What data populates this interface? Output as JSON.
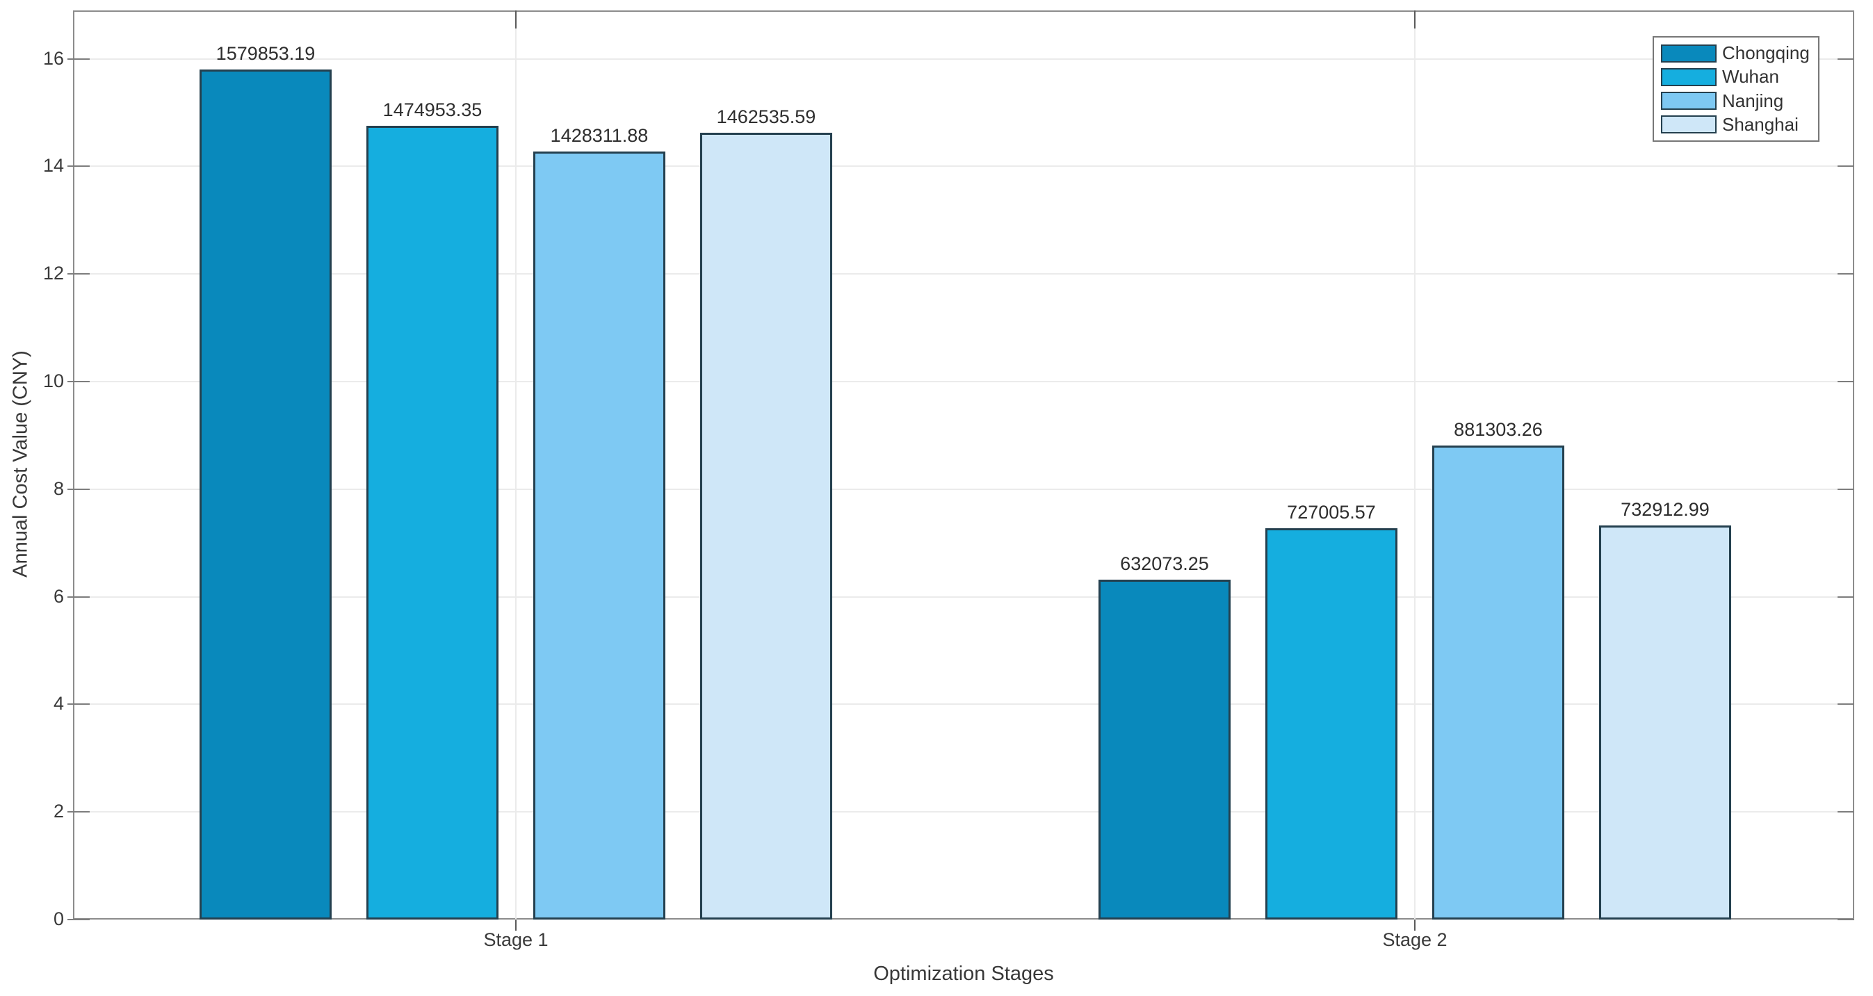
{
  "chart_data": {
    "type": "bar",
    "title": "",
    "xlabel": "Optimization Stages",
    "ylabel": "Annual Cost Value (CNY)",
    "categories": [
      "Stage 1",
      "Stage 2"
    ],
    "series": [
      {
        "name": "Chongqing",
        "color": "#0989bc",
        "values": [
          1579853.19,
          632073.25
        ]
      },
      {
        "name": "Wuhan",
        "color": "#15aedf",
        "values": [
          1474953.35,
          727005.57
        ]
      },
      {
        "name": "Nanjing",
        "color": "#7ec9f3",
        "values": [
          1428311.88,
          881303.26
        ]
      },
      {
        "name": "Shanghai",
        "color": "#cfe7f8",
        "values": [
          1462535.59,
          732912.99
        ]
      }
    ],
    "bar_value_labels": [
      [
        "1579853.19",
        "1474953.35",
        "1428311.88",
        "1462535.59"
      ],
      [
        "632073.25",
        "727005.57",
        "881303.26",
        "732912.99"
      ]
    ],
    "value_axis_scale": 100000,
    "yticks": [
      0,
      2,
      4,
      6,
      8,
      10,
      12,
      14,
      16
    ],
    "ytick_labels": [
      "0",
      "2",
      "4",
      "6",
      "8",
      "10",
      "12",
      "14",
      "16"
    ],
    "ylim": [
      0,
      16.9
    ],
    "grid": true,
    "legend_position": "top-right",
    "legend_entries": [
      "Chongqing",
      "Wuhan",
      "Nanjing",
      "Shanghai"
    ]
  },
  "colors": {
    "axis_box": "#8c8c8c",
    "grid": "#ebebeb",
    "bar_edge": "#24404f",
    "tick_text": "#3a3a3a",
    "label_text": "#383838"
  }
}
